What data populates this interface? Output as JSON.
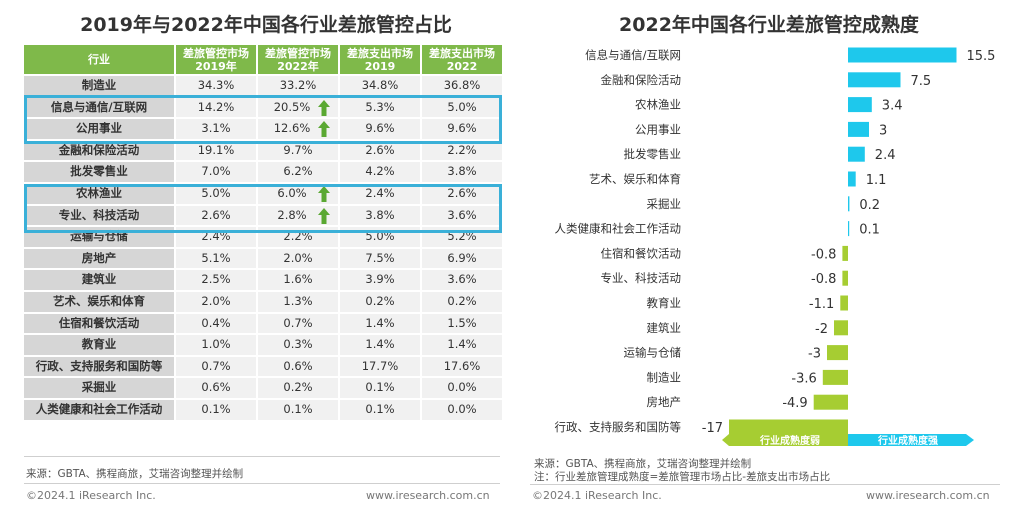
{
  "left": {
    "title": "2019年与2022年中国各行业差旅管控占比",
    "headers": [
      "行业",
      "差旅管控市场\n2019年",
      "差旅管控市场\n2022年",
      "差旅支出市场\n2019",
      "差旅支出市场\n2022"
    ],
    "rows": [
      {
        "name": "制造业",
        "v": [
          "34.3%",
          "33.2%",
          "34.8%",
          "36.8%"
        ],
        "up": false
      },
      {
        "name": "信息与通信/互联网",
        "v": [
          "14.2%",
          "20.5%",
          "5.3%",
          "5.0%"
        ],
        "up": true
      },
      {
        "name": "公用事业",
        "v": [
          "3.1%",
          "12.6%",
          "9.6%",
          "9.6%"
        ],
        "up": true
      },
      {
        "name": "金融和保险活动",
        "v": [
          "19.1%",
          "9.7%",
          "2.6%",
          "2.2%"
        ],
        "up": false
      },
      {
        "name": "批发零售业",
        "v": [
          "7.0%",
          "6.2%",
          "4.2%",
          "3.8%"
        ],
        "up": false
      },
      {
        "name": "农林渔业",
        "v": [
          "5.0%",
          "6.0%",
          "2.4%",
          "2.6%"
        ],
        "up": true
      },
      {
        "name": "专业、科技活动",
        "v": [
          "2.6%",
          "2.8%",
          "3.8%",
          "3.6%"
        ],
        "up": true
      },
      {
        "name": "运输与仓储",
        "v": [
          "2.4%",
          "2.2%",
          "5.0%",
          "5.2%"
        ],
        "up": false
      },
      {
        "name": "房地产",
        "v": [
          "5.1%",
          "2.0%",
          "7.5%",
          "6.9%"
        ],
        "up": false
      },
      {
        "name": "建筑业",
        "v": [
          "2.5%",
          "1.6%",
          "3.9%",
          "3.6%"
        ],
        "up": false
      },
      {
        "name": "艺术、娱乐和体育",
        "v": [
          "2.0%",
          "1.3%",
          "0.2%",
          "0.2%"
        ],
        "up": false
      },
      {
        "name": "住宿和餐饮活动",
        "v": [
          "0.4%",
          "0.7%",
          "1.4%",
          "1.5%"
        ],
        "up": false
      },
      {
        "name": "教育业",
        "v": [
          "1.0%",
          "0.3%",
          "1.4%",
          "1.4%"
        ],
        "up": false
      },
      {
        "name": "行政、支持服务和国防等",
        "v": [
          "0.7%",
          "0.6%",
          "17.7%",
          "17.6%"
        ],
        "up": false
      },
      {
        "name": "采掘业",
        "v": [
          "0.6%",
          "0.2%",
          "0.1%",
          "0.0%"
        ],
        "up": false
      },
      {
        "name": "人类健康和社会工作活动",
        "v": [
          "0.1%",
          "0.1%",
          "0.1%",
          "0.0%"
        ],
        "up": false
      }
    ],
    "source": "来源：GBTA、携程商旅，艾瑞咨询整理并绘制",
    "copyright": "©2024.1 iResearch Inc.",
    "website": "www.iresearch.com.cn"
  },
  "right": {
    "source": "来源：GBTA、携程商旅，艾瑞咨询整理并绘制",
    "note": "注：行业差旅管理成熟度=差旅管理市场占比-差旅支出市场占比",
    "copyright": "©2024.1 iResearch Inc.",
    "website": "www.iresearch.com.cn"
  },
  "colors": {
    "header_green": "#7fb94a",
    "highlight_blue": "#3ab0d8",
    "pos_bar": "#1ec8ec",
    "neg_bar": "#a6cd32",
    "arrow_green": "#5aa832"
  },
  "chart_data": {
    "type": "bar",
    "orientation": "horizontal",
    "title": "2022年中国各行业差旅管控成熟度",
    "categories": [
      "信息与通信/互联网",
      "金融和保险活动",
      "农林渔业",
      "公用事业",
      "批发零售业",
      "艺术、娱乐和体育",
      "采掘业",
      "人类健康和社会工作活动",
      "住宿和餐饮活动",
      "专业、科技活动",
      "教育业",
      "建筑业",
      "运输与仓储",
      "制造业",
      "房地产",
      "行政、支持服务和国防等"
    ],
    "values": [
      15.5,
      7.5,
      3.4,
      3,
      2.4,
      1.1,
      0.2,
      0.1,
      -0.8,
      -0.8,
      -1.1,
      -2,
      -3,
      -3.6,
      -4.9,
      -17
    ],
    "value_labels": [
      "15.5",
      "7.5",
      "3.4",
      "3",
      "2.4",
      "1.1",
      "0.2",
      "0.1",
      "-0.8",
      "-0.8",
      "-1.1",
      "-2",
      "-3",
      "-3.6",
      "-4.9",
      "-17"
    ],
    "axis_labels": {
      "negative": "行业成熟度弱",
      "positive": "行业成熟度强"
    },
    "xlim": [
      -17,
      15.5
    ],
    "grid": false,
    "legend": "none"
  }
}
